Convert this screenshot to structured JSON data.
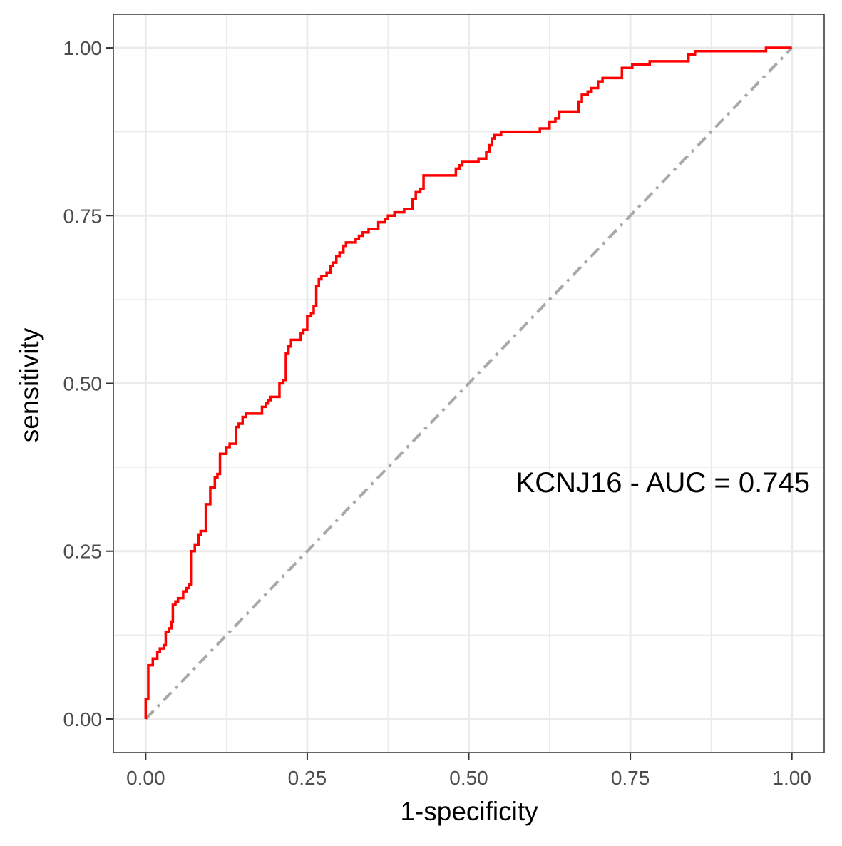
{
  "chart_data": {
    "type": "line",
    "title": "",
    "xlabel": "1-specificity",
    "ylabel": "sensitivity",
    "xlim": [
      -0.05,
      1.05
    ],
    "ylim": [
      -0.05,
      1.05
    ],
    "x_ticks": [
      0,
      0.25,
      0.5,
      0.75,
      1
    ],
    "x_tick_labels": [
      "0.00",
      "0.25",
      "0.50",
      "0.75",
      "1.00"
    ],
    "y_ticks": [
      0,
      0.25,
      0.5,
      0.75,
      1
    ],
    "y_tick_labels": [
      "0.00",
      "0.25",
      "0.50",
      "0.75",
      "1.00"
    ],
    "grid": true,
    "annotation": "KCNJ16 - AUC =  0.745",
    "colors": {
      "roc": "#ff0000",
      "reference": "#a9a9a9",
      "grid": "#ebebeb",
      "panel_border": "#333333",
      "tick_label": "#4d4d4d",
      "axis_title": "#000000"
    },
    "series": [
      {
        "values": [
          [
            0.0,
            0.0
          ],
          [
            0.0,
            0.03
          ],
          [
            0.004,
            0.03
          ],
          [
            0.004,
            0.08
          ],
          [
            0.011,
            0.08
          ],
          [
            0.011,
            0.09
          ],
          [
            0.018,
            0.09
          ],
          [
            0.018,
            0.1
          ],
          [
            0.022,
            0.1
          ],
          [
            0.022,
            0.105
          ],
          [
            0.028,
            0.105
          ],
          [
            0.028,
            0.11
          ],
          [
            0.031,
            0.11
          ],
          [
            0.031,
            0.13
          ],
          [
            0.036,
            0.13
          ],
          [
            0.036,
            0.135
          ],
          [
            0.04,
            0.135
          ],
          [
            0.04,
            0.145
          ],
          [
            0.042,
            0.145
          ],
          [
            0.042,
            0.17
          ],
          [
            0.046,
            0.17
          ],
          [
            0.046,
            0.175
          ],
          [
            0.05,
            0.175
          ],
          [
            0.05,
            0.18
          ],
          [
            0.058,
            0.18
          ],
          [
            0.058,
            0.19
          ],
          [
            0.063,
            0.19
          ],
          [
            0.063,
            0.195
          ],
          [
            0.067,
            0.195
          ],
          [
            0.067,
            0.2
          ],
          [
            0.071,
            0.2
          ],
          [
            0.071,
            0.25
          ],
          [
            0.076,
            0.25
          ],
          [
            0.076,
            0.26
          ],
          [
            0.082,
            0.26
          ],
          [
            0.082,
            0.275
          ],
          [
            0.085,
            0.275
          ],
          [
            0.085,
            0.28
          ],
          [
            0.093,
            0.28
          ],
          [
            0.093,
            0.32
          ],
          [
            0.1,
            0.32
          ],
          [
            0.1,
            0.345
          ],
          [
            0.107,
            0.345
          ],
          [
            0.107,
            0.36
          ],
          [
            0.111,
            0.36
          ],
          [
            0.111,
            0.365
          ],
          [
            0.115,
            0.365
          ],
          [
            0.115,
            0.395
          ],
          [
            0.125,
            0.395
          ],
          [
            0.125,
            0.405
          ],
          [
            0.13,
            0.405
          ],
          [
            0.13,
            0.41
          ],
          [
            0.14,
            0.41
          ],
          [
            0.14,
            0.435
          ],
          [
            0.144,
            0.435
          ],
          [
            0.144,
            0.44
          ],
          [
            0.15,
            0.44
          ],
          [
            0.15,
            0.45
          ],
          [
            0.155,
            0.45
          ],
          [
            0.155,
            0.455
          ],
          [
            0.18,
            0.455
          ],
          [
            0.18,
            0.465
          ],
          [
            0.186,
            0.465
          ],
          [
            0.186,
            0.47
          ],
          [
            0.19,
            0.47
          ],
          [
            0.19,
            0.475
          ],
          [
            0.193,
            0.475
          ],
          [
            0.193,
            0.48
          ],
          [
            0.207,
            0.48
          ],
          [
            0.207,
            0.5
          ],
          [
            0.213,
            0.5
          ],
          [
            0.213,
            0.505
          ],
          [
            0.217,
            0.505
          ],
          [
            0.217,
            0.545
          ],
          [
            0.221,
            0.545
          ],
          [
            0.221,
            0.555
          ],
          [
            0.225,
            0.555
          ],
          [
            0.225,
            0.565
          ],
          [
            0.24,
            0.565
          ],
          [
            0.24,
            0.575
          ],
          [
            0.244,
            0.575
          ],
          [
            0.244,
            0.58
          ],
          [
            0.25,
            0.58
          ],
          [
            0.25,
            0.6
          ],
          [
            0.256,
            0.6
          ],
          [
            0.256,
            0.605
          ],
          [
            0.26,
            0.605
          ],
          [
            0.26,
            0.615
          ],
          [
            0.264,
            0.615
          ],
          [
            0.264,
            0.645
          ],
          [
            0.268,
            0.645
          ],
          [
            0.268,
            0.655
          ],
          [
            0.272,
            0.655
          ],
          [
            0.272,
            0.66
          ],
          [
            0.28,
            0.66
          ],
          [
            0.28,
            0.665
          ],
          [
            0.286,
            0.665
          ],
          [
            0.286,
            0.675
          ],
          [
            0.29,
            0.675
          ],
          [
            0.29,
            0.68
          ],
          [
            0.295,
            0.68
          ],
          [
            0.295,
            0.69
          ],
          [
            0.3,
            0.69
          ],
          [
            0.3,
            0.695
          ],
          [
            0.306,
            0.695
          ],
          [
            0.306,
            0.705
          ],
          [
            0.31,
            0.705
          ],
          [
            0.31,
            0.71
          ],
          [
            0.325,
            0.71
          ],
          [
            0.325,
            0.715
          ],
          [
            0.33,
            0.715
          ],
          [
            0.33,
            0.72
          ],
          [
            0.336,
            0.72
          ],
          [
            0.336,
            0.725
          ],
          [
            0.345,
            0.725
          ],
          [
            0.345,
            0.73
          ],
          [
            0.36,
            0.73
          ],
          [
            0.36,
            0.74
          ],
          [
            0.37,
            0.74
          ],
          [
            0.37,
            0.745
          ],
          [
            0.375,
            0.745
          ],
          [
            0.375,
            0.75
          ],
          [
            0.385,
            0.75
          ],
          [
            0.385,
            0.755
          ],
          [
            0.4,
            0.755
          ],
          [
            0.4,
            0.76
          ],
          [
            0.413,
            0.76
          ],
          [
            0.413,
            0.775
          ],
          [
            0.418,
            0.775
          ],
          [
            0.418,
            0.785
          ],
          [
            0.425,
            0.785
          ],
          [
            0.425,
            0.79
          ],
          [
            0.43,
            0.79
          ],
          [
            0.43,
            0.81
          ],
          [
            0.48,
            0.81
          ],
          [
            0.48,
            0.82
          ],
          [
            0.486,
            0.82
          ],
          [
            0.486,
            0.825
          ],
          [
            0.49,
            0.825
          ],
          [
            0.49,
            0.83
          ],
          [
            0.515,
            0.83
          ],
          [
            0.515,
            0.835
          ],
          [
            0.527,
            0.835
          ],
          [
            0.527,
            0.845
          ],
          [
            0.532,
            0.845
          ],
          [
            0.532,
            0.855
          ],
          [
            0.536,
            0.855
          ],
          [
            0.536,
            0.865
          ],
          [
            0.54,
            0.865
          ],
          [
            0.54,
            0.87
          ],
          [
            0.55,
            0.87
          ],
          [
            0.55,
            0.875
          ],
          [
            0.61,
            0.875
          ],
          [
            0.61,
            0.88
          ],
          [
            0.625,
            0.88
          ],
          [
            0.625,
            0.89
          ],
          [
            0.634,
            0.89
          ],
          [
            0.634,
            0.895
          ],
          [
            0.64,
            0.895
          ],
          [
            0.64,
            0.905
          ],
          [
            0.67,
            0.905
          ],
          [
            0.67,
            0.92
          ],
          [
            0.675,
            0.92
          ],
          [
            0.675,
            0.93
          ],
          [
            0.684,
            0.93
          ],
          [
            0.684,
            0.935
          ],
          [
            0.69,
            0.935
          ],
          [
            0.69,
            0.94
          ],
          [
            0.7,
            0.94
          ],
          [
            0.7,
            0.95
          ],
          [
            0.707,
            0.95
          ],
          [
            0.707,
            0.955
          ],
          [
            0.737,
            0.955
          ],
          [
            0.737,
            0.97
          ],
          [
            0.753,
            0.97
          ],
          [
            0.753,
            0.975
          ],
          [
            0.78,
            0.975
          ],
          [
            0.78,
            0.98
          ],
          [
            0.84,
            0.98
          ],
          [
            0.84,
            0.99
          ],
          [
            0.85,
            0.99
          ],
          [
            0.85,
            0.995
          ],
          [
            0.96,
            0.995
          ],
          [
            0.96,
            1.0
          ],
          [
            1.0,
            1.0
          ]
        ]
      },
      {
        "values": [
          [
            0,
            0
          ],
          [
            1,
            1
          ]
        ]
      }
    ]
  }
}
